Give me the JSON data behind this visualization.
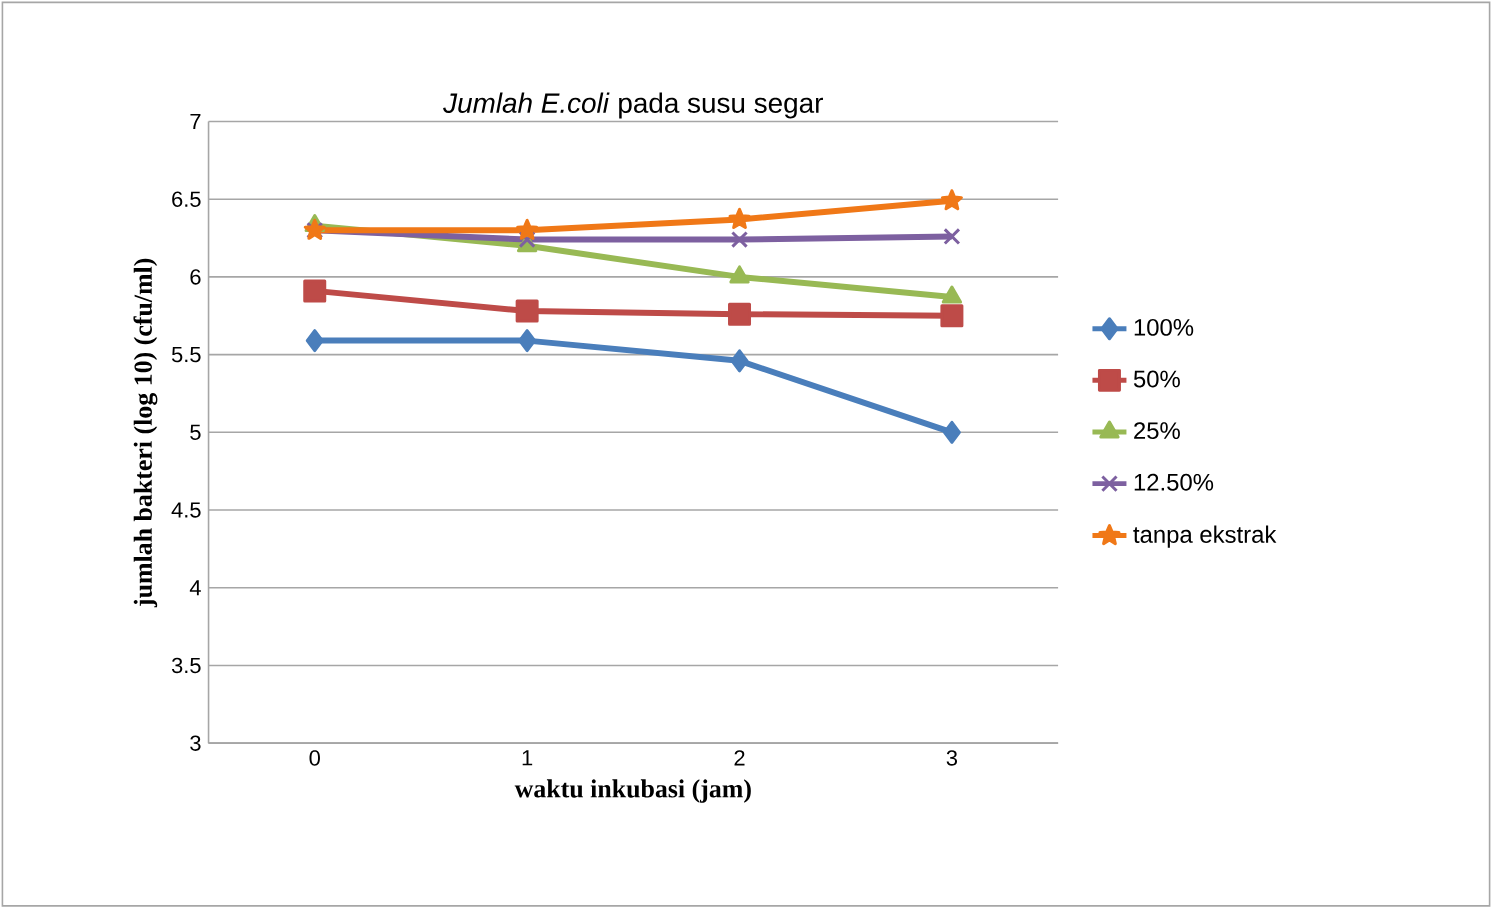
{
  "chart_data": {
    "type": "line",
    "title": "*Jumlah E.coli* pada susu segar",
    "xlabel": "waktu inkubasi (jam)",
    "ylabel": "jumlah bakteri (log 10) (cfu/ml)",
    "categories": [
      "0",
      "1",
      "2",
      "3"
    ],
    "series": [
      {
        "name": "100%",
        "color": "#4a7ebb",
        "marker": "diamond",
        "values": [
          5.59,
          5.59,
          5.46,
          5.0
        ]
      },
      {
        "name": "50%",
        "color": "#be4b48",
        "marker": "square",
        "values": [
          5.91,
          5.78,
          5.76,
          5.75
        ]
      },
      {
        "name": "25%",
        "color": "#98b954",
        "marker": "triangle",
        "values": [
          6.33,
          6.2,
          6.0,
          5.87
        ]
      },
      {
        "name": "12.50%",
        "color": "#7d60a0",
        "marker": "cross",
        "values": [
          6.3,
          6.24,
          6.24,
          6.26
        ]
      },
      {
        "name": "tanpa ekstrak",
        "color": "#f07817",
        "marker": "star",
        "values": [
          6.3,
          6.3,
          6.37,
          6.49
        ]
      }
    ],
    "ylim": [
      3,
      7
    ],
    "yticks": [
      3,
      3.5,
      4,
      4.5,
      5,
      5.5,
      6,
      6.5,
      7
    ],
    "grid": "y",
    "legend": "right",
    "line_style": "solid"
  }
}
